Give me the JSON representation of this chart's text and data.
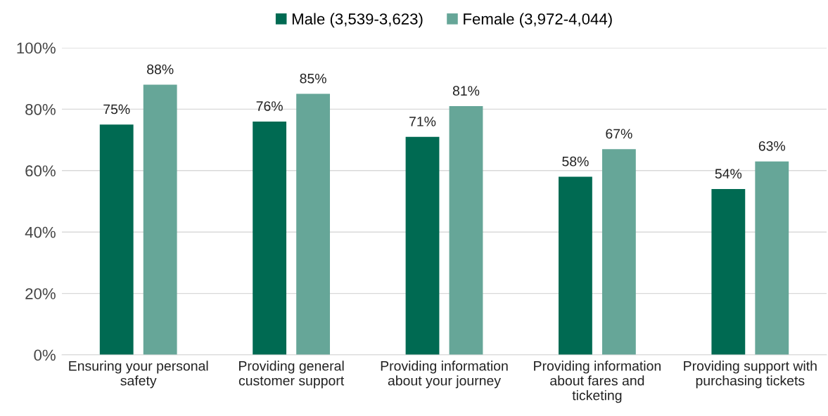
{
  "chart_data": {
    "type": "bar",
    "categories": [
      "Ensuring your personal\nsafety",
      "Providing general\ncustomer support",
      "Providing information\nabout your journey",
      "Providing information\nabout fares and\nticketing",
      "Providing support with\npurchasing tickets"
    ],
    "series": [
      {
        "name": "Male (3,539-3,623)",
        "color": "#006a52",
        "values": [
          75,
          76,
          71,
          58,
          54
        ],
        "value_labels": [
          "75%",
          "76%",
          "71%",
          "58%",
          "54%"
        ]
      },
      {
        "name": "Female (3,972-4,044)",
        "color": "#66a698",
        "values": [
          88,
          85,
          81,
          67,
          63
        ],
        "value_labels": [
          "88%",
          "85%",
          "81%",
          "67%",
          "63%"
        ]
      }
    ],
    "ylim": [
      0,
      100
    ],
    "yticks": [
      {
        "value": 0,
        "label": "0%"
      },
      {
        "value": 20,
        "label": "20%"
      },
      {
        "value": 40,
        "label": "40%"
      },
      {
        "value": 60,
        "label": "60%"
      },
      {
        "value": 80,
        "label": "80%"
      },
      {
        "value": 100,
        "label": "100%"
      }
    ],
    "grid": "y",
    "legend": "top"
  }
}
